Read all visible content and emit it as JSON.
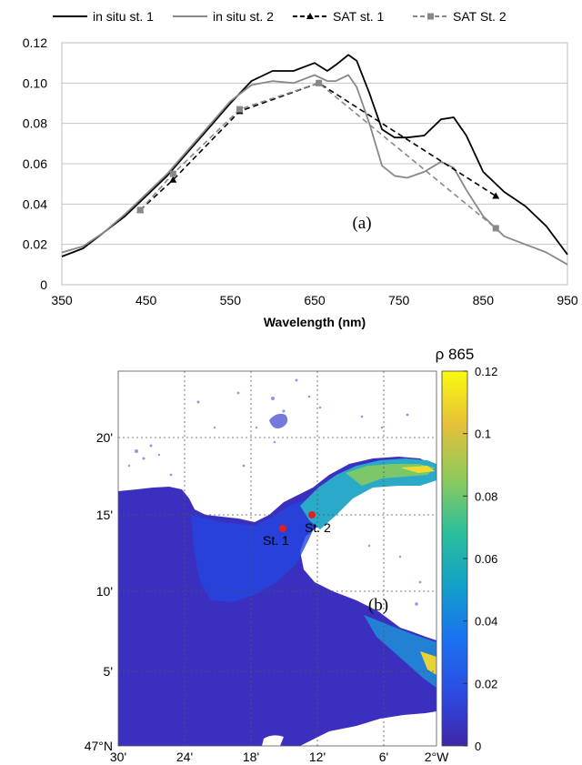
{
  "chart_data": [
    {
      "type": "line",
      "xlabel": "Wavelength (nm)",
      "ylabel": "",
      "xlim": [
        350,
        950
      ],
      "ylim": [
        0,
        0.12
      ],
      "x_ticks": [
        "350",
        "450",
        "550",
        "650",
        "750",
        "850",
        "950"
      ],
      "y_ticks": [
        "0",
        "0.02",
        "0.04",
        "0.06",
        "0.08",
        "0.10",
        "0.12"
      ],
      "grid": "horizontal",
      "legend_position": "top",
      "panel_label": "(a)",
      "series": [
        {
          "name": "in situ st. 1",
          "color": "#000000",
          "style": "solid",
          "x": [
            350,
            375,
            400,
            425,
            450,
            475,
            500,
            525,
            550,
            575,
            600,
            625,
            650,
            665,
            675,
            690,
            700,
            715,
            730,
            745,
            760,
            780,
            800,
            815,
            830,
            850,
            875,
            900,
            925,
            950
          ],
          "y": [
            0.014,
            0.018,
            0.026,
            0.034,
            0.044,
            0.054,
            0.066,
            0.078,
            0.09,
            0.101,
            0.106,
            0.106,
            0.11,
            0.106,
            0.109,
            0.114,
            0.111,
            0.095,
            0.077,
            0.073,
            0.073,
            0.074,
            0.082,
            0.083,
            0.074,
            0.056,
            0.046,
            0.039,
            0.029,
            0.015
          ]
        },
        {
          "name": "in situ st. 2",
          "color": "#888888",
          "style": "solid",
          "x": [
            350,
            375,
            400,
            425,
            450,
            475,
            500,
            525,
            550,
            575,
            600,
            625,
            650,
            665,
            675,
            690,
            700,
            715,
            730,
            745,
            760,
            780,
            800,
            815,
            830,
            850,
            875,
            900,
            925,
            950
          ],
          "y": [
            0.016,
            0.019,
            0.026,
            0.035,
            0.045,
            0.055,
            0.067,
            0.079,
            0.091,
            0.099,
            0.101,
            0.1,
            0.104,
            0.101,
            0.101,
            0.104,
            0.098,
            0.08,
            0.059,
            0.054,
            0.053,
            0.056,
            0.061,
            0.058,
            0.047,
            0.034,
            0.024,
            0.02,
            0.016,
            0.01
          ]
        },
        {
          "name": "SAT st. 1",
          "color": "#000000",
          "style": "dashed",
          "marker": "triangle",
          "x": [
            443,
            482,
            561,
            655,
            865
          ],
          "y": [
            0.037,
            0.052,
            0.086,
            0.1,
            0.044
          ]
        },
        {
          "name": "SAT St. 2",
          "color": "#888888",
          "style": "dashed",
          "marker": "square",
          "x": [
            443,
            482,
            561,
            655,
            865
          ],
          "y": [
            0.037,
            0.055,
            0.087,
            0.1,
            0.028
          ]
        }
      ]
    },
    {
      "type": "heatmap",
      "title": "ρ 865",
      "panel_label": "(b)",
      "x_ticks": [
        "30'",
        "24'",
        "18'",
        "12'",
        "6'",
        "2°W"
      ],
      "y_ticks": [
        "47°N",
        "5'",
        "10'",
        "15'",
        "20'"
      ],
      "colorbar_ticks": [
        "0",
        "0.02",
        "0.04",
        "0.06",
        "0.08",
        "0.1",
        "0.12"
      ],
      "colorbar_range": [
        0,
        0.12
      ],
      "colormap": [
        "#3e26a8",
        "#2c4be2",
        "#1a73f0",
        "#13a1c8",
        "#2cbf9a",
        "#8cca5c",
        "#e6c13a",
        "#f9fb0e"
      ],
      "stations": [
        {
          "name": "St. 1",
          "color": "#e02020"
        },
        {
          "name": "St. 2",
          "color": "#e02020"
        }
      ]
    }
  ]
}
